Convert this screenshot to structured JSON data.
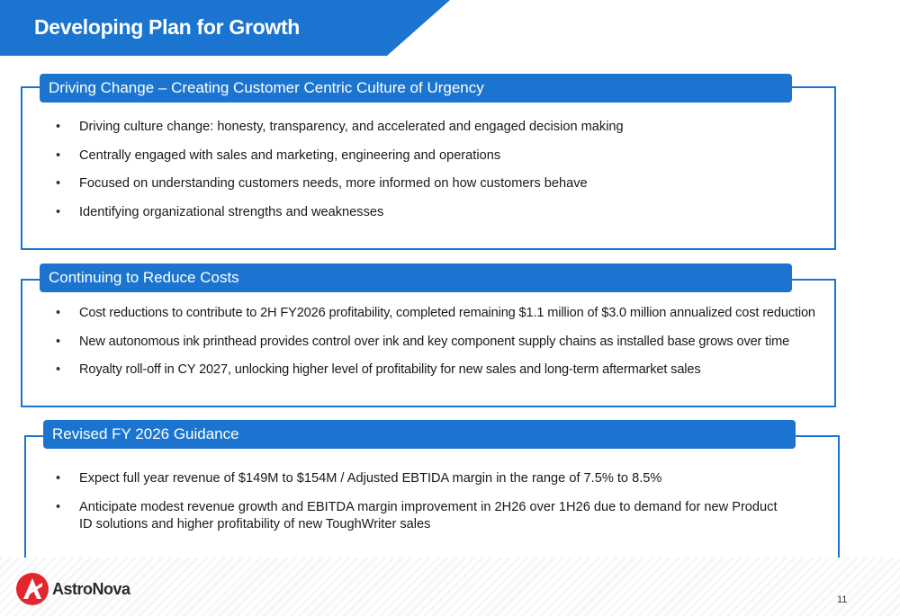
{
  "page": {
    "title": "Developing Plan for Growth",
    "number": "11"
  },
  "sections": [
    {
      "heading": "Driving Change – Creating Customer Centric Culture of Urgency",
      "bullets": [
        "Driving culture change: honesty, transparency, and accelerated and engaged decision making",
        "Centrally engaged with sales and marketing, engineering and operations",
        "Focused on understanding customers needs, more informed on how customers behave",
        "Identifying organizational strengths and weaknesses"
      ]
    },
    {
      "heading": "Continuing to Reduce Costs",
      "bullets": [
        "Cost reductions to contribute to 2H FY2026 profitability, completed remaining $1.1 million of $3.0 million annualized cost reduction",
        "New autonomous ink printhead provides control over ink and key component supply chains as installed base grows over time",
        "Royalty roll-off in CY 2027, unlocking higher level of profitability for new sales and long-term aftermarket sales"
      ]
    },
    {
      "heading": "Revised FY 2026 Guidance",
      "bullets": [
        "Expect full year revenue of $149M to $154M / Adjusted EBTIDA margin in the range of 7.5% to 8.5%",
        "Anticipate modest revenue growth and EBITDA margin improvement in 2H26 over 1H26 due to demand for new Product ID solutions and higher profitability of new ToughWriter sales"
      ]
    }
  ],
  "logo": {
    "text": "AstroNova",
    "icon": "astronova-logo-icon"
  },
  "colors": {
    "accent": "#1b75d0",
    "logo_red": "#e3262b"
  }
}
